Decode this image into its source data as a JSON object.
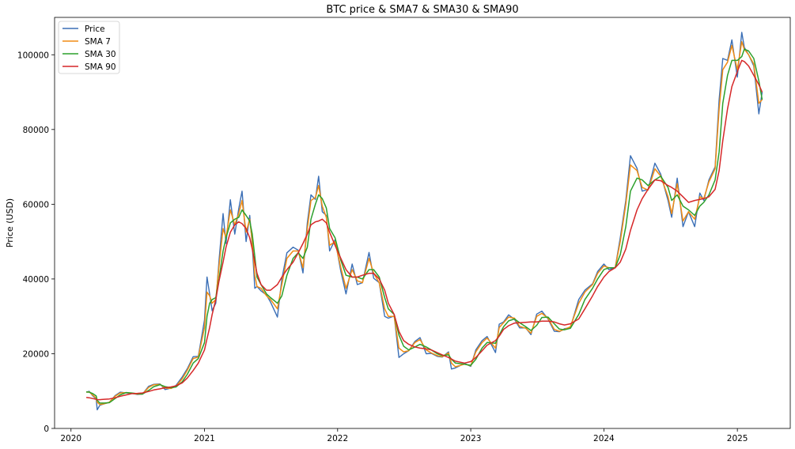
{
  "chart_data": {
    "type": "line",
    "title": "BTC price & SMA7 & SMA30 & SMA90",
    "xlabel": "",
    "ylabel": "Price (USD)",
    "x_ticks": [
      "2020",
      "2021",
      "2022",
      "2023",
      "2024",
      "2025"
    ],
    "y_ticks": [
      "0",
      "20000",
      "40000",
      "60000",
      "80000",
      "100000"
    ],
    "xlim": [
      "2019-11-17",
      "2025-05-26"
    ],
    "ylim": [
      0,
      110000
    ],
    "legend_position": "top-left",
    "grid": false,
    "x": [
      "2020-02-12",
      "2020-02-20",
      "2020-03-01",
      "2020-03-10",
      "2020-03-13",
      "2020-03-20",
      "2020-04-01",
      "2020-04-15",
      "2020-05-01",
      "2020-05-15",
      "2020-06-01",
      "2020-06-15",
      "2020-07-01",
      "2020-07-15",
      "2020-08-01",
      "2020-08-15",
      "2020-09-01",
      "2020-09-15",
      "2020-10-01",
      "2020-10-15",
      "2020-11-01",
      "2020-11-15",
      "2020-12-01",
      "2020-12-15",
      "2021-01-01",
      "2021-01-08",
      "2021-01-15",
      "2021-01-22",
      "2021-02-01",
      "2021-02-10",
      "2021-02-21",
      "2021-03-01",
      "2021-03-13",
      "2021-03-25",
      "2021-04-05",
      "2021-04-14",
      "2021-04-25",
      "2021-05-05",
      "2021-05-12",
      "2021-05-19",
      "2021-05-25",
      "2021-06-05",
      "2021-06-20",
      "2021-07-01",
      "2021-07-20",
      "2021-08-01",
      "2021-08-15",
      "2021-09-01",
      "2021-09-15",
      "2021-09-28",
      "2021-10-10",
      "2021-10-20",
      "2021-11-01",
      "2021-11-10",
      "2021-11-20",
      "2021-12-01",
      "2021-12-10",
      "2021-12-25",
      "2022-01-10",
      "2022-01-24",
      "2022-02-10",
      "2022-02-24",
      "2022-03-10",
      "2022-03-28",
      "2022-04-10",
      "2022-04-25",
      "2022-05-10",
      "2022-05-20",
      "2022-06-05",
      "2022-06-18",
      "2022-07-01",
      "2022-07-15",
      "2022-08-01",
      "2022-08-15",
      "2022-09-01",
      "2022-09-15",
      "2022-10-01",
      "2022-10-15",
      "2022-11-01",
      "2022-11-09",
      "2022-11-20",
      "2022-12-15",
      "2023-01-01",
      "2023-01-15",
      "2023-02-01",
      "2023-02-15",
      "2023-03-10",
      "2023-03-20",
      "2023-04-01",
      "2023-04-15",
      "2023-05-01",
      "2023-05-15",
      "2023-06-01",
      "2023-06-15",
      "2023-07-01",
      "2023-07-15",
      "2023-08-01",
      "2023-08-18",
      "2023-09-01",
      "2023-09-15",
      "2023-10-01",
      "2023-10-24",
      "2023-11-10",
      "2023-12-01",
      "2023-12-15",
      "2024-01-01",
      "2024-01-15",
      "2024-02-01",
      "2024-02-15",
      "2024-03-01",
      "2024-03-14",
      "2024-04-01",
      "2024-04-15",
      "2024-05-01",
      "2024-05-20",
      "2024-06-05",
      "2024-06-25",
      "2024-07-05",
      "2024-07-20",
      "2024-08-05",
      "2024-08-20",
      "2024-09-06",
      "2024-09-20",
      "2024-10-01",
      "2024-10-15",
      "2024-11-01",
      "2024-11-12",
      "2024-11-22",
      "2024-12-05",
      "2024-12-17",
      "2025-01-01",
      "2025-01-13",
      "2025-01-20",
      "2025-02-01",
      "2025-02-15",
      "2025-03-01",
      "2025-03-10"
    ],
    "series": [
      {
        "name": "Price",
        "color": "#3b6fb6",
        "values": [
          9700,
          9950,
          8700,
          7900,
          5000,
          6200,
          6600,
          7000,
          8800,
          9700,
          9500,
          9400,
          9100,
          9200,
          11300,
          11800,
          11900,
          10400,
          10800,
          11500,
          13800,
          16000,
          19200,
          19300,
          29000,
          40500,
          36000,
          31500,
          33500,
          45000,
          57500,
          49500,
          61200,
          52000,
          58800,
          63500,
          50000,
          57000,
          49000,
          37500,
          38000,
          36800,
          35700,
          33800,
          29800,
          40000,
          47000,
          48500,
          47700,
          41600,
          55000,
          62500,
          61300,
          67500,
          58000,
          57000,
          47500,
          50500,
          42000,
          36000,
          44000,
          38500,
          39000,
          47100,
          40200,
          39000,
          30000,
          29500,
          30100,
          19000,
          20000,
          20800,
          23300,
          24300,
          20000,
          20100,
          19300,
          19100,
          20500,
          15900,
          16200,
          17400,
          16600,
          21000,
          23500,
          24600,
          20300,
          27900,
          28500,
          30400,
          29200,
          26900,
          26900,
          25100,
          30600,
          31400,
          29300,
          26000,
          25900,
          26700,
          27000,
          34500,
          37000,
          38700,
          42000,
          44000,
          42500,
          43000,
          51000,
          61000,
          73000,
          69600,
          63500,
          64000,
          71000,
          68000,
          61000,
          56500,
          67000,
          54000,
          58000,
          54000,
          63000,
          61000,
          66500,
          70000,
          88000,
          99000,
          98500,
          104000,
          94000,
          106000,
          102000,
          100000,
          97000,
          84200,
          90000
        ]
      },
      {
        "name": "SMA 7",
        "color": "#f08c14",
        "values": [
          9700,
          9800,
          8900,
          8100,
          7000,
          6400,
          6600,
          7000,
          8600,
          9500,
          9600,
          9400,
          9200,
          9200,
          11000,
          11700,
          11800,
          10800,
          10700,
          11300,
          13300,
          15600,
          18700,
          19100,
          27000,
          36500,
          35500,
          33500,
          34500,
          43500,
          53500,
          51000,
          58500,
          54500,
          57500,
          61000,
          52500,
          56000,
          50000,
          41000,
          38000,
          37500,
          35500,
          34500,
          32000,
          38500,
          45500,
          47500,
          47500,
          43000,
          53500,
          61000,
          61800,
          65000,
          59500,
          56500,
          49000,
          50000,
          43000,
          37500,
          42500,
          39500,
          39000,
          45500,
          41500,
          39000,
          32000,
          30000,
          30000,
          21500,
          20500,
          20800,
          23000,
          23800,
          21000,
          20200,
          19500,
          19200,
          20200,
          17500,
          16500,
          17200,
          16800,
          20500,
          23000,
          24200,
          21500,
          27000,
          28300,
          29800,
          29500,
          27300,
          26800,
          25500,
          30000,
          30800,
          29500,
          26500,
          26000,
          26500,
          27200,
          33500,
          36500,
          38500,
          41500,
          43500,
          43000,
          43000,
          50000,
          60000,
          70500,
          69000,
          64500,
          63800,
          69500,
          67500,
          62000,
          57500,
          65500,
          55500,
          58000,
          56000,
          62000,
          61500,
          66000,
          69500,
          85500,
          96000,
          98000,
          102500,
          96000,
          103500,
          101500,
          100000,
          97500,
          87000,
          88000
        ]
      },
      {
        "name": "SMA 30",
        "color": "#2ca02c",
        "values": [
          9800,
          9700,
          9300,
          8700,
          7500,
          6800,
          6800,
          6900,
          8000,
          9000,
          9600,
          9500,
          9300,
          9200,
          10200,
          11200,
          11700,
          11200,
          10900,
          11100,
          12500,
          14500,
          17500,
          18700,
          23000,
          30000,
          33500,
          34500,
          35000,
          40000,
          47500,
          51000,
          55000,
          56000,
          56500,
          58500,
          57000,
          55500,
          52000,
          46000,
          40500,
          38500,
          36000,
          35000,
          33500,
          35500,
          41000,
          45500,
          47000,
          45500,
          48500,
          56000,
          60000,
          62500,
          61500,
          59000,
          53500,
          51000,
          45000,
          41000,
          40500,
          40500,
          40000,
          42500,
          42500,
          40500,
          35000,
          32000,
          30500,
          25000,
          22000,
          21000,
          21800,
          22500,
          21800,
          21000,
          20000,
          19500,
          19700,
          18500,
          17500,
          17200,
          16900,
          18500,
          21500,
          23000,
          22800,
          25000,
          27200,
          28800,
          29300,
          28300,
          27200,
          26200,
          27600,
          29700,
          29800,
          28000,
          26600,
          26400,
          26800,
          30500,
          34500,
          37500,
          40000,
          42500,
          43000,
          43000,
          46500,
          54000,
          63500,
          67000,
          66500,
          65000,
          66500,
          67500,
          64500,
          61000,
          62500,
          59500,
          58500,
          57000,
          59500,
          60500,
          62500,
          66500,
          74000,
          87000,
          94500,
          98500,
          98500,
          99500,
          101500,
          101000,
          99000,
          93000,
          88000
        ]
      },
      {
        "name": "SMA 90",
        "color": "#d62728",
        "values": [
          8300,
          8200,
          8000,
          7800,
          7700,
          7700,
          7800,
          7900,
          8200,
          8600,
          9000,
          9300,
          9400,
          9500,
          9900,
          10300,
          10600,
          10900,
          11100,
          11400,
          12200,
          13500,
          15500,
          17500,
          21000,
          24000,
          27000,
          30500,
          34500,
          39500,
          44500,
          48500,
          52500,
          54500,
          55300,
          54800,
          53500,
          51000,
          48000,
          44500,
          41500,
          38500,
          37000,
          37000,
          38500,
          40500,
          42500,
          44500,
          47000,
          49500,
          52000,
          54500,
          55300,
          55500,
          56000,
          55000,
          52500,
          49000,
          45500,
          42500,
          40500,
          40500,
          41000,
          41500,
          41500,
          40000,
          37000,
          33500,
          30500,
          26000,
          23500,
          22500,
          21800,
          21500,
          21300,
          21000,
          20300,
          19700,
          19000,
          18600,
          18000,
          17500,
          17900,
          19000,
          20800,
          22300,
          23500,
          24700,
          26500,
          27500,
          28200,
          28300,
          28400,
          28500,
          28500,
          28700,
          28700,
          28500,
          28000,
          27700,
          28000,
          29300,
          32000,
          35500,
          38000,
          40500,
          42000,
          43000,
          44500,
          48000,
          53000,
          58500,
          61500,
          64000,
          66500,
          66300,
          65000,
          64500,
          63500,
          62000,
          60500,
          61000,
          61300,
          61500,
          62000,
          64000,
          69000,
          77000,
          85500,
          91500,
          95500,
          98500,
          98200,
          97000,
          94500,
          92000,
          90000
        ]
      }
    ]
  }
}
